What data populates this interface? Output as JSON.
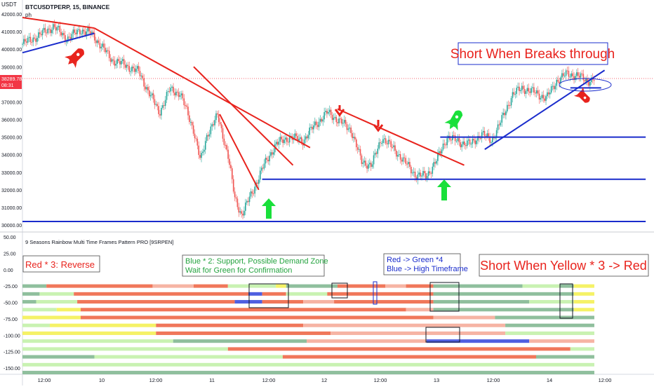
{
  "header": {
    "currency": "USDT",
    "symbol_line": "BTCUSDTPERP, 15, BINANCE",
    "sub_label": "ph",
    "indicator_title": "9 Seasons Rainbow Multi Time Frames Pattern PRO [9SRPEN]"
  },
  "price_tag": {
    "price": "38289.78",
    "countdown": "08:31"
  },
  "annotations": {
    "short_breaks": "Short When Breaks through",
    "red_reverse": "Red * 3:  Reverse",
    "blue_support_1": "Blue * 2: Support, Possible Demand Zone",
    "blue_support_2": "Wait for Green for Confirmation",
    "red_green_1": "Red -> Green *4",
    "red_green_2": "Blue -> High Timeframe",
    "short_yellow": "Short When Yellow * 3 -> Red"
  },
  "colors": {
    "red_line": "#e8231d",
    "blue_line": "#1a2ccc",
    "candle_up": "#26a69a",
    "candle_down": "#ef5350",
    "green_arrow": "#19e03a",
    "rb_red": "#f0775a",
    "rb_lightred": "#f6b4a4",
    "rb_green": "#8fbf9d",
    "rb_lightgreen": "#c9f2b2",
    "rb_yellow": "#f5f266",
    "rb_blue": "#4f5fe0"
  },
  "chart_data": [
    {
      "type": "candlestick",
      "title": "BTCUSDTPERP, 15, BINANCE",
      "ylim": [
        29800,
        42000
      ],
      "y_ticks": [
        "42000.00",
        "41000.00",
        "40000.00",
        "39000.00",
        "38000.00",
        "37000.00",
        "36000.00",
        "35000.00",
        "34000.00",
        "33000.00",
        "32000.00",
        "31000.00",
        "30000.00"
      ],
      "x_ticks": [
        "12:00",
        "10",
        "12:00",
        "11",
        "12:00",
        "12",
        "12:00",
        "13",
        "12:00",
        "14",
        "12:00"
      ],
      "price_path": [
        [
          0,
          40300
        ],
        [
          0.25,
          40800
        ],
        [
          0.45,
          41300
        ],
        [
          0.65,
          40600
        ],
        [
          0.85,
          41100
        ],
        [
          1.0,
          40900
        ],
        [
          1.15,
          40200
        ],
        [
          1.3,
          39400
        ],
        [
          1.5,
          39100
        ],
        [
          1.7,
          38700
        ],
        [
          1.85,
          37500
        ],
        [
          2.0,
          36400
        ],
        [
          2.15,
          37700
        ],
        [
          2.3,
          37500
        ],
        [
          2.5,
          35400
        ],
        [
          2.6,
          33600
        ],
        [
          2.7,
          35200
        ],
        [
          2.85,
          36200
        ],
        [
          3.0,
          34000
        ],
        [
          3.1,
          31500
        ],
        [
          3.2,
          30600
        ],
        [
          3.35,
          31800
        ],
        [
          3.5,
          33200
        ],
        [
          3.7,
          34600
        ],
        [
          3.9,
          35000
        ],
        [
          4.1,
          34800
        ],
        [
          4.25,
          35600
        ],
        [
          4.45,
          36400
        ],
        [
          4.6,
          36000
        ],
        [
          4.8,
          35400
        ],
        [
          4.95,
          33600
        ],
        [
          5.1,
          33400
        ],
        [
          5.25,
          35000
        ],
        [
          5.45,
          34200
        ],
        [
          5.6,
          33500
        ],
        [
          5.75,
          32800
        ],
        [
          5.9,
          32800
        ],
        [
          6.05,
          33700
        ],
        [
          6.2,
          35000
        ],
        [
          6.4,
          34700
        ],
        [
          6.55,
          34600
        ],
        [
          6.7,
          35200
        ],
        [
          6.85,
          34800
        ],
        [
          7.0,
          36000
        ],
        [
          7.15,
          37400
        ],
        [
          7.3,
          37800
        ],
        [
          7.5,
          37500
        ],
        [
          7.65,
          37200
        ],
        [
          7.8,
          38200
        ],
        [
          7.95,
          38600
        ],
        [
          8.1,
          38500
        ],
        [
          8.25,
          38200
        ],
        [
          8.35,
          38300
        ]
      ],
      "trend_lines": [
        {
          "color": "red",
          "from": [
            0.0,
            41800
          ],
          "to": [
            1.05,
            41200
          ]
        },
        {
          "color": "blue",
          "from": [
            0.0,
            39800
          ],
          "to": [
            1.05,
            40900
          ]
        },
        {
          "color": "red",
          "from": [
            1.05,
            41200
          ],
          "to": [
            4.2,
            34400
          ]
        },
        {
          "color": "red",
          "from": [
            2.5,
            39000
          ],
          "to": [
            3.95,
            33400
          ]
        },
        {
          "color": "red",
          "from": [
            2.88,
            36300
          ],
          "to": [
            3.45,
            32000
          ]
        },
        {
          "color": "red",
          "from": [
            4.6,
            36600
          ],
          "to": [
            6.45,
            33400
          ]
        },
        {
          "color": "blue",
          "from": [
            3.5,
            32600
          ],
          "to": [
            9.1,
            32600
          ]
        },
        {
          "color": "blue",
          "from": [
            0.0,
            30200
          ],
          "to": [
            9.1,
            30200
          ]
        },
        {
          "color": "blue",
          "from": [
            6.1,
            35000
          ],
          "to": [
            9.1,
            35000
          ]
        },
        {
          "color": "blue",
          "from": [
            6.75,
            34300
          ],
          "to": [
            8.5,
            38800
          ]
        },
        {
          "color": "blue",
          "from": [
            8.0,
            37800
          ],
          "to": [
            8.45,
            37800
          ]
        }
      ]
    },
    {
      "type": "heatmap",
      "title": "9 Seasons Rainbow Multi Time Frames Pattern PRO [9SRPEN]",
      "ylim": [
        -155,
        55
      ],
      "y_ticks": [
        "50.00",
        "25.00",
        "0.00",
        "-25.00",
        "-50.00",
        "-75.00",
        "-100.00",
        "-125.00",
        "-150.00"
      ],
      "rows": [
        {
          "level": -25,
          "segments": [
            [
              "rb_green",
              0.0,
              0.35
            ],
            [
              "rb_red",
              0.35,
              1.9
            ],
            [
              "rb_lightred",
              1.9,
              2.5
            ],
            [
              "rb_red",
              2.5,
              3.0
            ],
            [
              "rb_lightgreen",
              3.0,
              3.7
            ],
            [
              "rb_yellow",
              3.7,
              3.85
            ],
            [
              "rb_green",
              3.85,
              4.6
            ],
            [
              "rb_red",
              4.6,
              5.3
            ],
            [
              "rb_lightred",
              5.3,
              5.6
            ],
            [
              "rb_red",
              5.6,
              6.0
            ],
            [
              "rb_green",
              6.0,
              7.3
            ],
            [
              "rb_lightgreen",
              7.3,
              7.85
            ],
            [
              "rb_green",
              7.85,
              8.05
            ],
            [
              "rb_yellow",
              8.05,
              8.35
            ]
          ]
        },
        {
          "level": -37,
          "segments": [
            [
              "rb_green",
              0.0,
              0.25
            ],
            [
              "rb_lightgreen",
              0.25,
              0.75
            ],
            [
              "rb_red",
              0.75,
              3.3
            ],
            [
              "rb_blue",
              3.3,
              3.5
            ],
            [
              "rb_red",
              3.5,
              3.85
            ],
            [
              "rb_lightgreen",
              3.85,
              4.45
            ],
            [
              "rb_red",
              4.45,
              6.0
            ],
            [
              "rb_green",
              6.0,
              8.05
            ],
            [
              "rb_yellow",
              8.05,
              8.35
            ]
          ]
        },
        {
          "level": -49,
          "segments": [
            [
              "rb_green",
              0.0,
              0.2
            ],
            [
              "rb_lightgreen",
              0.2,
              0.8
            ],
            [
              "rb_red",
              0.8,
              3.1
            ],
            [
              "rb_blue",
              3.1,
              3.5
            ],
            [
              "rb_red",
              3.5,
              4.1
            ],
            [
              "rb_lightred",
              4.1,
              4.55
            ],
            [
              "rb_red",
              4.55,
              6.0
            ],
            [
              "rb_green",
              6.0,
              7.4
            ],
            [
              "rb_lightgreen",
              7.4,
              8.05
            ],
            [
              "rb_yellow",
              8.05,
              8.35
            ]
          ]
        },
        {
          "level": -61,
          "segments": [
            [
              "rb_lightgreen",
              0.0,
              0.5
            ],
            [
              "rb_yellow",
              0.5,
              0.85
            ],
            [
              "rb_red",
              0.85,
              5.6
            ],
            [
              "rb_lightred",
              5.6,
              6.0
            ],
            [
              "rb_green",
              6.0,
              8.05
            ],
            [
              "rb_yellow",
              8.05,
              8.35
            ]
          ]
        },
        {
          "level": -73,
          "segments": [
            [
              "rb_yellow",
              0.0,
              0.85
            ],
            [
              "rb_red",
              0.85,
              6.0
            ],
            [
              "rb_lightred",
              6.0,
              6.9
            ],
            [
              "rb_green",
              6.9,
              8.35
            ]
          ]
        },
        {
          "level": -85,
          "segments": [
            [
              "rb_lightgreen",
              0.0,
              0.4
            ],
            [
              "rb_yellow",
              0.4,
              1.95
            ],
            [
              "rb_red",
              1.95,
              4.1
            ],
            [
              "rb_lightred",
              4.1,
              7.05
            ],
            [
              "rb_green",
              7.05,
              8.35
            ]
          ]
        },
        {
          "level": -97,
          "segments": [
            [
              "rb_yellow",
              0.0,
              1.95
            ],
            [
              "rb_red",
              1.95,
              4.5
            ],
            [
              "rb_lightred",
              4.5,
              7.05
            ],
            [
              "rb_lightgreen",
              7.05,
              8.35
            ]
          ]
        },
        {
          "level": -109,
          "segments": [
            [
              "rb_lightgreen",
              0.0,
              2.2
            ],
            [
              "rb_green",
              2.2,
              4.15
            ],
            [
              "rb_lightred",
              4.15,
              5.9
            ],
            [
              "rb_blue",
              5.9,
              7.4
            ],
            [
              "rb_lightred",
              7.4,
              8.35
            ]
          ]
        },
        {
          "level": -121,
          "segments": [
            [
              "rb_lightgreen",
              0.0,
              3.0
            ],
            [
              "rb_red",
              3.0,
              8.0
            ],
            [
              "rb_lightgreen",
              8.0,
              8.35
            ]
          ]
        },
        {
          "level": -133,
          "segments": [
            [
              "rb_green",
              0.0,
              1.05
            ],
            [
              "rb_lightgreen",
              1.05,
              3.8
            ],
            [
              "rb_red",
              3.8,
              7.5
            ],
            [
              "rb_green",
              7.5,
              8.35
            ]
          ]
        },
        {
          "level": -145,
          "segments": [
            [
              "rb_lightgreen",
              0.0,
              8.35
            ]
          ]
        },
        {
          "level": -157,
          "segments": [
            [
              "rb_green",
              0.0,
              8.35
            ]
          ]
        }
      ]
    }
  ]
}
